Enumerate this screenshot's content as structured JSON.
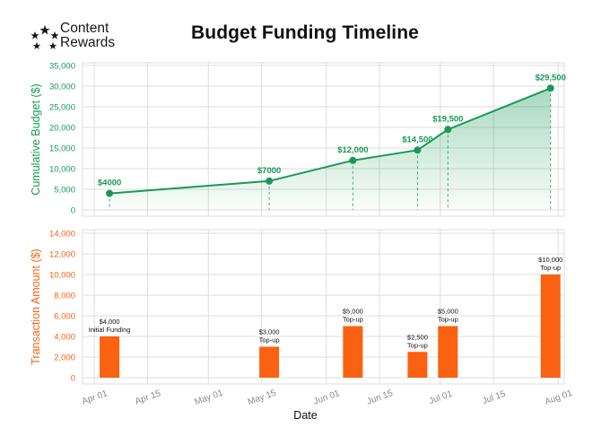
{
  "logo": {
    "line1": "Content",
    "line2": "Rewards",
    "icon": "star-cluster-icon"
  },
  "title": "Budget Funding Timeline",
  "colors": {
    "green": "#179a55",
    "orange": "#fa6110",
    "grid": "#dddddd",
    "text": "#111111"
  },
  "chart_data": [
    {
      "type": "area",
      "ylabel": "Cumulative Budget ($)",
      "ylim": [
        0,
        35000
      ],
      "yticks": [
        0,
        5000,
        10000,
        15000,
        20000,
        25000,
        30000,
        35000
      ],
      "ytick_labels": [
        "0",
        "5,000",
        "10,000",
        "15,000",
        "20,000",
        "25,000",
        "30,000",
        "35,000"
      ],
      "grid": true,
      "points": [
        {
          "x": "2023-04-05",
          "y": 4000,
          "label": "$4000"
        },
        {
          "x": "2023-05-17",
          "y": 7000,
          "label": "$7000"
        },
        {
          "x": "2023-06-08",
          "y": 12000,
          "label": "$12,000"
        },
        {
          "x": "2023-06-25",
          "y": 14500,
          "label": "$14,500"
        },
        {
          "x": "2023-07-03",
          "y": 19500,
          "label": "$19,500"
        },
        {
          "x": "2023-07-30",
          "y": 29500,
          "label": "$29,500"
        }
      ]
    },
    {
      "type": "bar",
      "xlabel": "Date",
      "ylabel": "Transaction Amount ($)",
      "ylim": [
        0,
        14000
      ],
      "yticks": [
        0,
        2000,
        4000,
        6000,
        8000,
        10000,
        12000,
        14000
      ],
      "ytick_labels": [
        "0",
        "2,000",
        "4,000",
        "6,000",
        "8,000",
        "10,000",
        "12,000",
        "14,000"
      ],
      "xticks": [
        "2023-04-01",
        "2023-04-15",
        "2023-05-01",
        "2023-05-15",
        "2023-06-01",
        "2023-06-15",
        "2023-07-01",
        "2023-07-15",
        "2023-08-01"
      ],
      "xtick_labels": [
        "Apr 01",
        "Apr 15",
        "May 01",
        "May 15",
        "Jun 01",
        "Jun 15",
        "Jul 01",
        "Jul 15",
        "Aug 01"
      ],
      "grid": true,
      "bars": [
        {
          "x": "2023-04-05",
          "value": 4000,
          "amount": "$4,000",
          "type": "Initial Funding"
        },
        {
          "x": "2023-05-17",
          "value": 3000,
          "amount": "$3,000",
          "type": "Top-up"
        },
        {
          "x": "2023-06-08",
          "value": 5000,
          "amount": "$5,000",
          "type": "Top-up"
        },
        {
          "x": "2023-06-25",
          "value": 2500,
          "amount": "$2,500",
          "type": "Top-up"
        },
        {
          "x": "2023-07-03",
          "value": 5000,
          "amount": "$5,000",
          "type": "Top-up"
        },
        {
          "x": "2023-07-30",
          "value": 10000,
          "amount": "$10,000",
          "type": "Top-up"
        }
      ]
    }
  ]
}
